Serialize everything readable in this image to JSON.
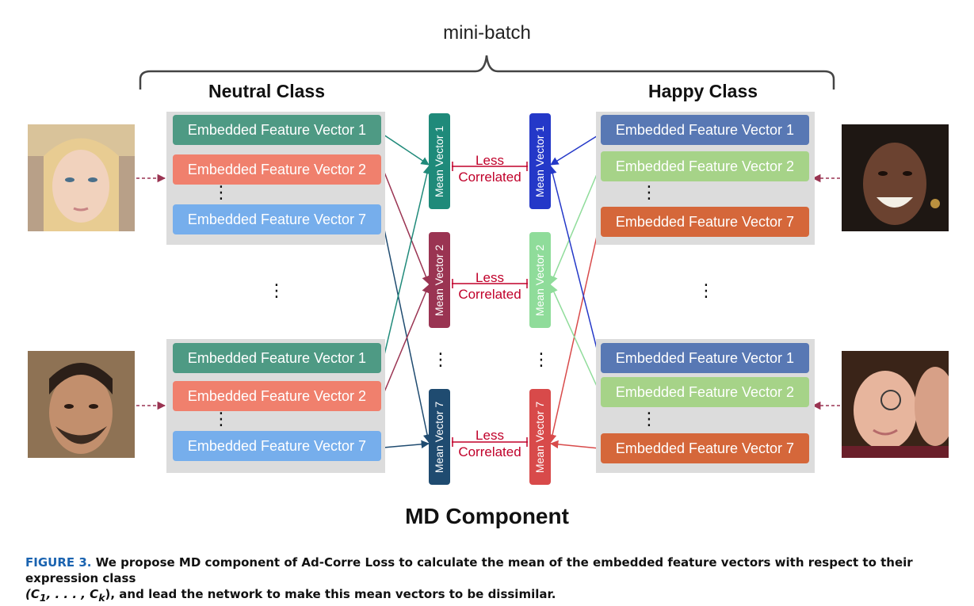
{
  "figure": {
    "top_label": "mini-batch",
    "left_class": "Neutral Class",
    "right_class": "Happy Class",
    "fv1": "Embedded Feature Vector 1",
    "fv2": "Embedded Feature Vector 2",
    "fv7": "Embedded Feature Vector 7",
    "mean1": "Mean Vector 1",
    "mean2": "Mean Vector 2",
    "mean7": "Mean Vector 7",
    "less": "Less",
    "correlated": "Correlated",
    "component_label": "MD Component",
    "colors": {
      "neutral_fv1": "#4e9a84",
      "neutral_fv2": "#f0806d",
      "neutral_fv7": "#76aeec",
      "neutral_mean1": "#1f8a7a",
      "neutral_mean2": "#9a3452",
      "neutral_mean7": "#1f4b70",
      "happy_fv1": "#5878b4",
      "happy_fv2": "#a6d388",
      "happy_fv7": "#d5673a",
      "happy_mean1": "#2438c8",
      "happy_mean2": "#8fdc9a",
      "happy_mean7": "#d84a4a",
      "less_correlated": "#c0002a",
      "panel": "#dcdcdc"
    }
  },
  "caption": {
    "label": "FIGURE 3.",
    "text_a": "We propose MD component of Ad-Corre Loss to calculate the mean of the embedded feature vectors with respect to their expression class",
    "text_b": "(C",
    "sub_1": "1",
    "text_c": ", . . . , C",
    "sub_k": "k",
    "text_d": "), and lead the network to make this mean vectors to be dissimilar."
  }
}
